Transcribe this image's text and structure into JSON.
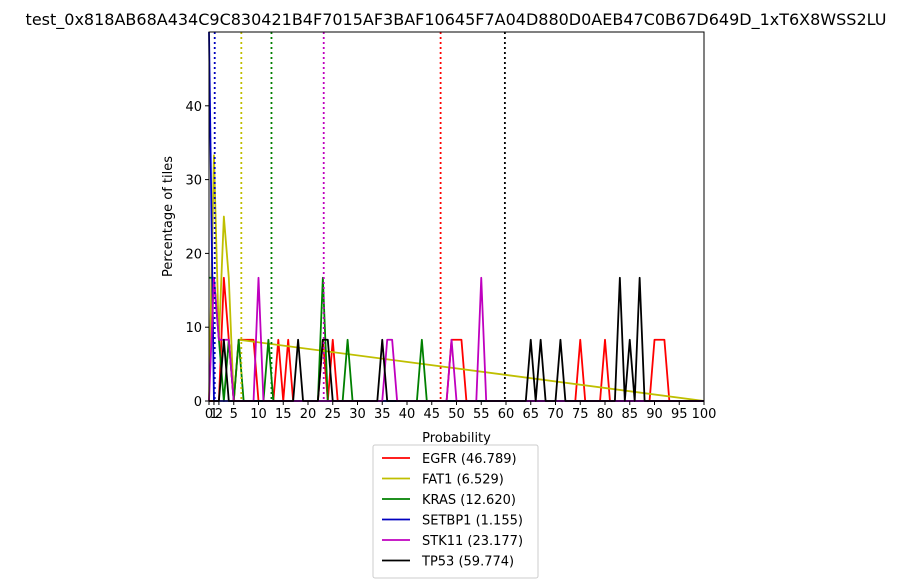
{
  "chart_data": {
    "type": "line",
    "title": "test_0x818AB68A434C9C830421B4F7015AF3BAF10645F7A04D880D0AEB47C0B67D649D_1xT6X8WSS2LU",
    "xlabel": "Probability",
    "ylabel": "Percentage of tiles",
    "xlim": [
      0,
      100
    ],
    "ylim": [
      0,
      50
    ],
    "x_ticks": [
      0,
      1,
      2,
      5,
      10,
      15,
      20,
      25,
      30,
      35,
      40,
      45,
      50,
      55,
      60,
      65,
      70,
      75,
      80,
      85,
      90,
      95,
      100
    ],
    "x_tick_labels": [
      "0",
      "1",
      "2",
      "5",
      "10",
      "15",
      "20",
      "25",
      "30",
      "35",
      "40",
      "45",
      "50",
      "55",
      "60",
      "65",
      "70",
      "75",
      "80",
      "85",
      "90",
      "95",
      "100"
    ],
    "y_ticks": [
      0,
      10,
      20,
      30,
      40
    ],
    "y_tick_labels": [
      "0",
      "10",
      "20",
      "30",
      "40"
    ],
    "grid": false,
    "legend_position": "below-plot",
    "series": [
      {
        "name": "EGFR (46.789)",
        "color": "#ff0000",
        "threshold": 46.789,
        "x": [
          0,
          2,
          3,
          4,
          5,
          6,
          7,
          8,
          9,
          10,
          13,
          14,
          15,
          16,
          17,
          22,
          23,
          24,
          25,
          26,
          48,
          49,
          50,
          51,
          52,
          74,
          75,
          76,
          77,
          79,
          80,
          81,
          82,
          88,
          89,
          90,
          91,
          92,
          93,
          94,
          100
        ],
        "y": [
          0,
          0,
          16.7,
          8.3,
          0,
          8.3,
          8.3,
          8.3,
          8.3,
          0,
          0,
          8.3,
          0,
          8.3,
          0,
          0,
          8.3,
          0,
          8.3,
          0,
          0,
          8.3,
          8.3,
          8.3,
          0,
          0,
          8.3,
          0,
          0,
          0,
          8.3,
          0,
          0,
          0,
          0,
          8.3,
          8.3,
          8.3,
          0,
          0,
          0
        ]
      },
      {
        "name": "FAT1 (6.529)",
        "color": "#bfbf00",
        "threshold": 6.529,
        "x": [
          0,
          1,
          2,
          3,
          4,
          5,
          6,
          100
        ],
        "y": [
          0,
          33.3,
          8.3,
          25,
          16.7,
          0,
          8.3,
          0
        ]
      },
      {
        "name": "KRAS (12.620)",
        "color": "#008000",
        "threshold": 12.62,
        "x": [
          0,
          1,
          3,
          4,
          5,
          6,
          7,
          8,
          10,
          11,
          12,
          13,
          21,
          22,
          23,
          24,
          26,
          27,
          28,
          29,
          42,
          43,
          44,
          100
        ],
        "y": [
          16.7,
          16.7,
          0,
          8.3,
          0,
          8.3,
          0,
          0,
          0,
          0,
          8.3,
          0,
          0,
          0,
          16.7,
          0,
          0,
          0,
          8.3,
          0,
          0,
          8.3,
          0,
          0
        ]
      },
      {
        "name": "SETBP1 (1.155)",
        "color": "#0000bf",
        "threshold": 1.155,
        "x": [
          0,
          1,
          2,
          100
        ],
        "y": [
          50,
          0,
          0,
          0
        ]
      },
      {
        "name": "STK11 (23.177)",
        "color": "#bf00bf",
        "threshold": 23.177,
        "x": [
          0,
          1,
          2,
          3,
          4,
          5,
          6,
          9,
          10,
          11,
          34,
          35,
          36,
          37,
          38,
          47,
          48,
          49,
          50,
          53,
          54,
          55,
          56,
          100
        ],
        "y": [
          0,
          16.7,
          8.3,
          8.3,
          8.3,
          0,
          0,
          0,
          16.7,
          0,
          0,
          0,
          8.3,
          8.3,
          0,
          0,
          0,
          8.3,
          0,
          0,
          0,
          16.7,
          0,
          0
        ]
      },
      {
        "name": "TP53 (59.774)",
        "color": "#000000",
        "threshold": 59.774,
        "x": [
          0,
          2,
          3,
          4,
          5,
          17,
          18,
          19,
          22,
          23,
          24,
          25,
          34,
          35,
          36,
          64,
          65,
          66,
          67,
          68,
          70,
          71,
          72,
          82,
          83,
          84,
          85,
          86,
          87,
          88,
          89,
          100
        ],
        "y": [
          0,
          0,
          8.3,
          0,
          0,
          0,
          8.3,
          0,
          0,
          8.3,
          8.3,
          0,
          0,
          8.3,
          0,
          0,
          8.3,
          0,
          8.3,
          0,
          0,
          8.3,
          0,
          0,
          16.7,
          0,
          8.3,
          0,
          16.7,
          0,
          0,
          0
        ]
      }
    ]
  }
}
